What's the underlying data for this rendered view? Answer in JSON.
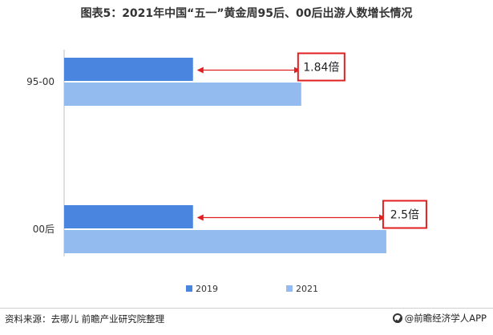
{
  "title": "图表5：2021年中国“五一”黄金周95后、00后出游人数增长情况",
  "source": "资料来源：去哪儿 前瞻产业研究院整理",
  "brand": "@前瞻经济学人APP",
  "colors": {
    "s2019": "#4a86e0",
    "s2021": "#93bbf0",
    "annotation": "#e02020",
    "axis": "#bfbfbf"
  },
  "chart_data": {
    "type": "bar",
    "orientation": "horizontal",
    "categories": [
      "95-00",
      "00后"
    ],
    "series": [
      {
        "name": "2019",
        "values": [
          1,
          1
        ]
      },
      {
        "name": "2021",
        "values": [
          1.84,
          2.5
        ]
      }
    ],
    "annotations": [
      "1.84倍",
      "2.5倍"
    ],
    "xlim": [
      0,
      2.6
    ],
    "grid": false,
    "legend": "bottom"
  }
}
